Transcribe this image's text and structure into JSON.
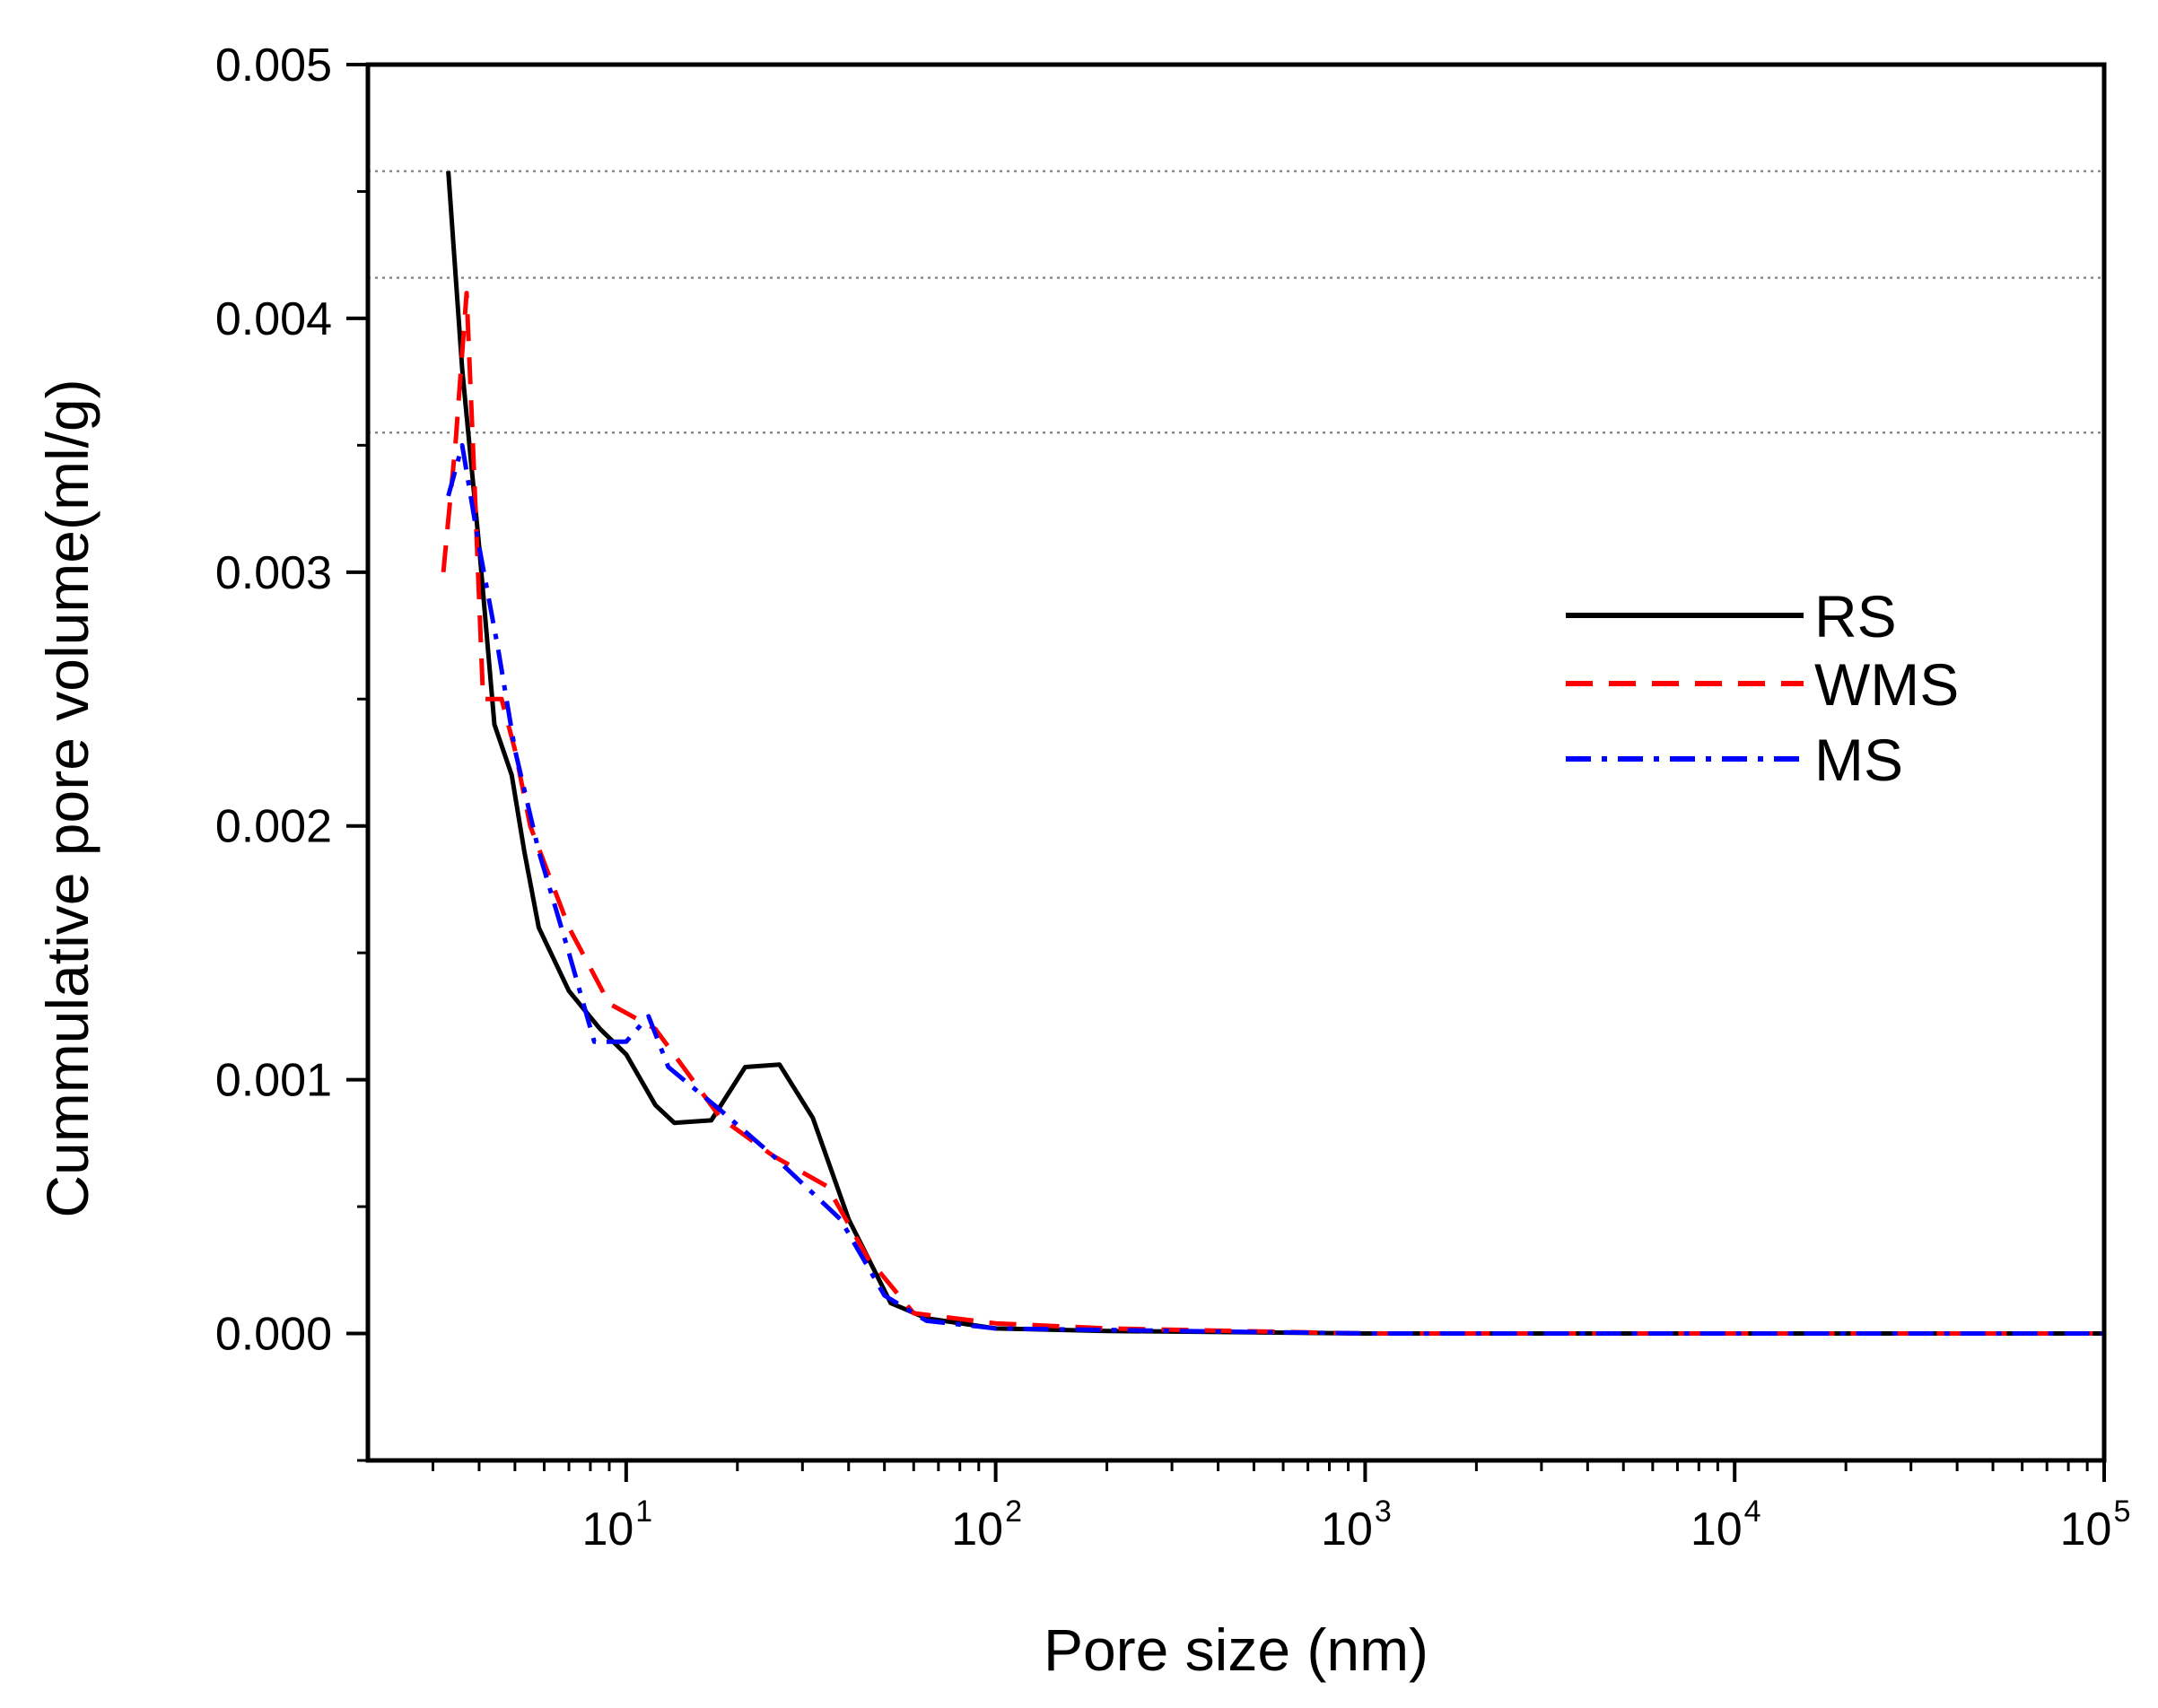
{
  "chart_data": {
    "type": "line",
    "title": "",
    "xlabel": "Pore size (nm)",
    "ylabel": "Cummulative pore volume(ml/g)",
    "xscale": "log",
    "xlim": [
      2,
      100000
    ],
    "ylim": [
      -0.0005,
      0.005
    ],
    "x_ticks": [
      {
        "value": 10,
        "base": "10",
        "exp": "1"
      },
      {
        "value": 100,
        "base": "10",
        "exp": "2"
      },
      {
        "value": 1000,
        "base": "10",
        "exp": "3"
      },
      {
        "value": 10000,
        "base": "10",
        "exp": "4"
      },
      {
        "value": 100000,
        "base": "10",
        "exp": "5"
      }
    ],
    "y_ticks": [
      {
        "value": 0.0,
        "label": "0.000"
      },
      {
        "value": 0.001,
        "label": "0.001"
      },
      {
        "value": 0.002,
        "label": "0.002"
      },
      {
        "value": 0.003,
        "label": "0.003"
      },
      {
        "value": 0.004,
        "label": "0.004"
      },
      {
        "value": 0.005,
        "label": "0.005"
      }
    ],
    "reference_lines_y": [
      0.00458,
      0.00416,
      0.00355
    ],
    "legend": {
      "position": "right",
      "entries": [
        "RS",
        "WMS",
        "MS"
      ]
    },
    "series": [
      {
        "name": "RS",
        "color": "#000000",
        "dash": "solid",
        "points": [
          [
            3.3,
            0.00458
          ],
          [
            3.6,
            0.0038
          ],
          [
            4.0,
            0.0031
          ],
          [
            4.4,
            0.0024
          ],
          [
            4.9,
            0.0022
          ],
          [
            5.3,
            0.0019
          ],
          [
            5.8,
            0.0016
          ],
          [
            7.0,
            0.00135
          ],
          [
            8.5,
            0.0012
          ],
          [
            10.0,
            0.0011
          ],
          [
            12.0,
            0.0009
          ],
          [
            13.5,
            0.00083
          ],
          [
            17.0,
            0.00084
          ],
          [
            21.0,
            0.00105
          ],
          [
            26.0,
            0.00106
          ],
          [
            32.0,
            0.00085
          ],
          [
            40.0,
            0.00045
          ],
          [
            52.0,
            0.00012
          ],
          [
            65.0,
            6e-05
          ],
          [
            100.0,
            2e-05
          ],
          [
            200.0,
            1e-05
          ],
          [
            1000.0,
            0.0
          ],
          [
            100000.0,
            0.0
          ]
        ]
      },
      {
        "name": "WMS",
        "color": "#ff0000",
        "dash": "dash",
        "points": [
          [
            3.2,
            0.003
          ],
          [
            3.45,
            0.0035
          ],
          [
            3.7,
            0.0041
          ],
          [
            3.85,
            0.0035
          ],
          [
            4.1,
            0.0025
          ],
          [
            4.6,
            0.0025
          ],
          [
            5.0,
            0.0023
          ],
          [
            5.5,
            0.002
          ],
          [
            7.0,
            0.0016
          ],
          [
            9.0,
            0.0013
          ],
          [
            12.0,
            0.0012
          ],
          [
            18.0,
            0.00085
          ],
          [
            25.0,
            0.0007
          ],
          [
            35.0,
            0.00058
          ],
          [
            45.0,
            0.0003
          ],
          [
            60.0,
            8e-05
          ],
          [
            100.0,
            4e-05
          ],
          [
            200.0,
            2e-05
          ],
          [
            1000.0,
            0.0
          ],
          [
            100000.0,
            0.0
          ]
        ]
      },
      {
        "name": "MS",
        "color": "#0000ff",
        "dash": "dashdot",
        "points": [
          [
            3.3,
            0.0033
          ],
          [
            3.6,
            0.0035
          ],
          [
            4.0,
            0.0031
          ],
          [
            4.5,
            0.0027
          ],
          [
            5.0,
            0.0023
          ],
          [
            5.8,
            0.0019
          ],
          [
            7.0,
            0.0015
          ],
          [
            8.2,
            0.00115
          ],
          [
            10.0,
            0.00115
          ],
          [
            11.5,
            0.00125
          ],
          [
            13.0,
            0.00105
          ],
          [
            18.0,
            0.00088
          ],
          [
            25.0,
            0.0007
          ],
          [
            38.0,
            0.00045
          ],
          [
            50.0,
            0.00015
          ],
          [
            65.0,
            5e-05
          ],
          [
            100.0,
            2e-05
          ],
          [
            1000.0,
            0.0
          ],
          [
            100000.0,
            0.0
          ]
        ]
      }
    ]
  }
}
